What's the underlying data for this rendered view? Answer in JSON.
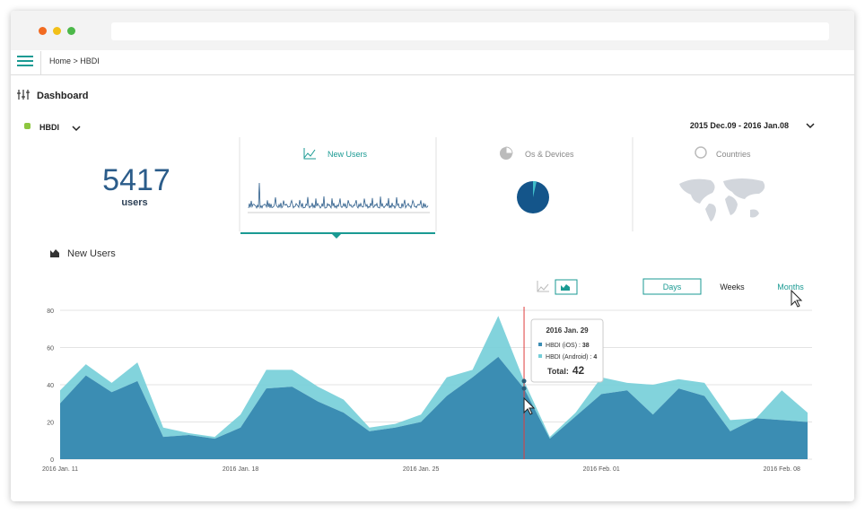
{
  "window": {
    "breadcrumb": "Home > HBDI"
  },
  "header": {
    "title": "Dashboard",
    "app": "HBDI",
    "date_range": "2015 Dec.09 - 2016 Jan.08"
  },
  "summary": {
    "value": 5417,
    "label": "users"
  },
  "tabs": [
    "New Users",
    "Os & Devices",
    "Countries"
  ],
  "section_title": "New Users",
  "range_buttons": [
    "Days",
    "Weeks",
    "Months"
  ],
  "chart_data": {
    "type": "area",
    "stacked": true,
    "categories": [
      "2016 Jan. 11",
      null,
      null,
      null,
      null,
      null,
      null,
      "2016 Jan. 18",
      null,
      null,
      null,
      null,
      null,
      null,
      "2016 Jan. 25",
      null,
      null,
      null,
      null,
      null,
      null,
      "2016 Feb. 01",
      null,
      null,
      null,
      null,
      null,
      null,
      "2016 Feb. 08",
      null
    ],
    "series": [
      {
        "name": "HBDI (iOS)",
        "color": "#3b8db3",
        "values": [
          30,
          45,
          36,
          42,
          12,
          13,
          11,
          17,
          38,
          39,
          31,
          25,
          15,
          17,
          20,
          34,
          44,
          55,
          38,
          11,
          23,
          35,
          37,
          24,
          38,
          34,
          15,
          22,
          21,
          20
        ]
      },
      {
        "name": "HBDI (Android)",
        "color": "#74ced8",
        "values": [
          7,
          6,
          5,
          10,
          5,
          1,
          1,
          7,
          10,
          9,
          8,
          7,
          2,
          2,
          4,
          10,
          4,
          22,
          4,
          1,
          2,
          9,
          4,
          16,
          5,
          7,
          6,
          0,
          16,
          5
        ]
      }
    ],
    "ylim": [
      0,
      80
    ],
    "yticks": [
      0,
      20,
      40,
      60,
      80
    ],
    "grid": true,
    "tooltip": {
      "index": 18,
      "title": "2016 Jan. 29",
      "separator": " : ",
      "total_label": "Total:",
      "total": 42
    }
  }
}
